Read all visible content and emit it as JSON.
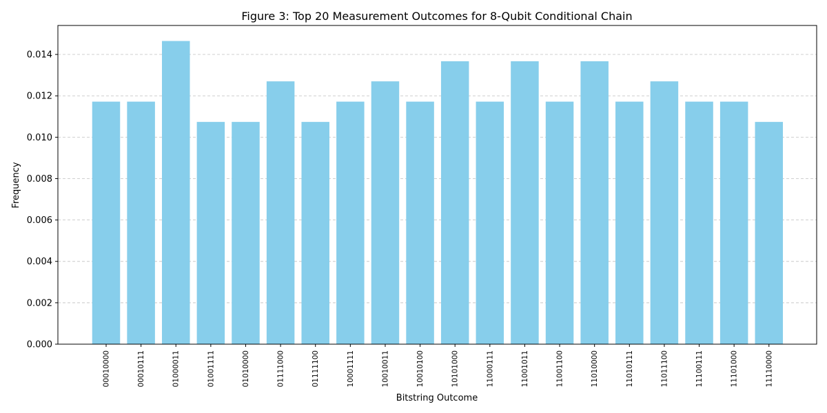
{
  "chart_data": {
    "type": "bar",
    "title": "Figure 3: Top 20 Measurement Outcomes for 8-Qubit Conditional Chain",
    "xlabel": "Bitstring Outcome",
    "ylabel": "Frequency",
    "categories": [
      "00010000",
      "00010111",
      "01000011",
      "01001111",
      "01010000",
      "01111000",
      "01111100",
      "10001111",
      "10010011",
      "10010100",
      "10101000",
      "11000111",
      "11001011",
      "11001100",
      "11010000",
      "11010111",
      "11011100",
      "11100111",
      "11101000",
      "11110000"
    ],
    "values": [
      0.01172,
      0.01172,
      0.01465,
      0.01074,
      0.01074,
      0.0127,
      0.01074,
      0.01172,
      0.0127,
      0.01172,
      0.01367,
      0.01172,
      0.01367,
      0.01172,
      0.01367,
      0.01172,
      0.0127,
      0.01172,
      0.01172,
      0.01074
    ],
    "ylim": [
      0,
      0.0154
    ],
    "yticks": [
      "0.000",
      "0.002",
      "0.004",
      "0.006",
      "0.008",
      "0.010",
      "0.012",
      "0.014"
    ],
    "grid": "y-dashed",
    "bar_color": "#87CEEB",
    "grid_color": "#c8c8c8"
  }
}
